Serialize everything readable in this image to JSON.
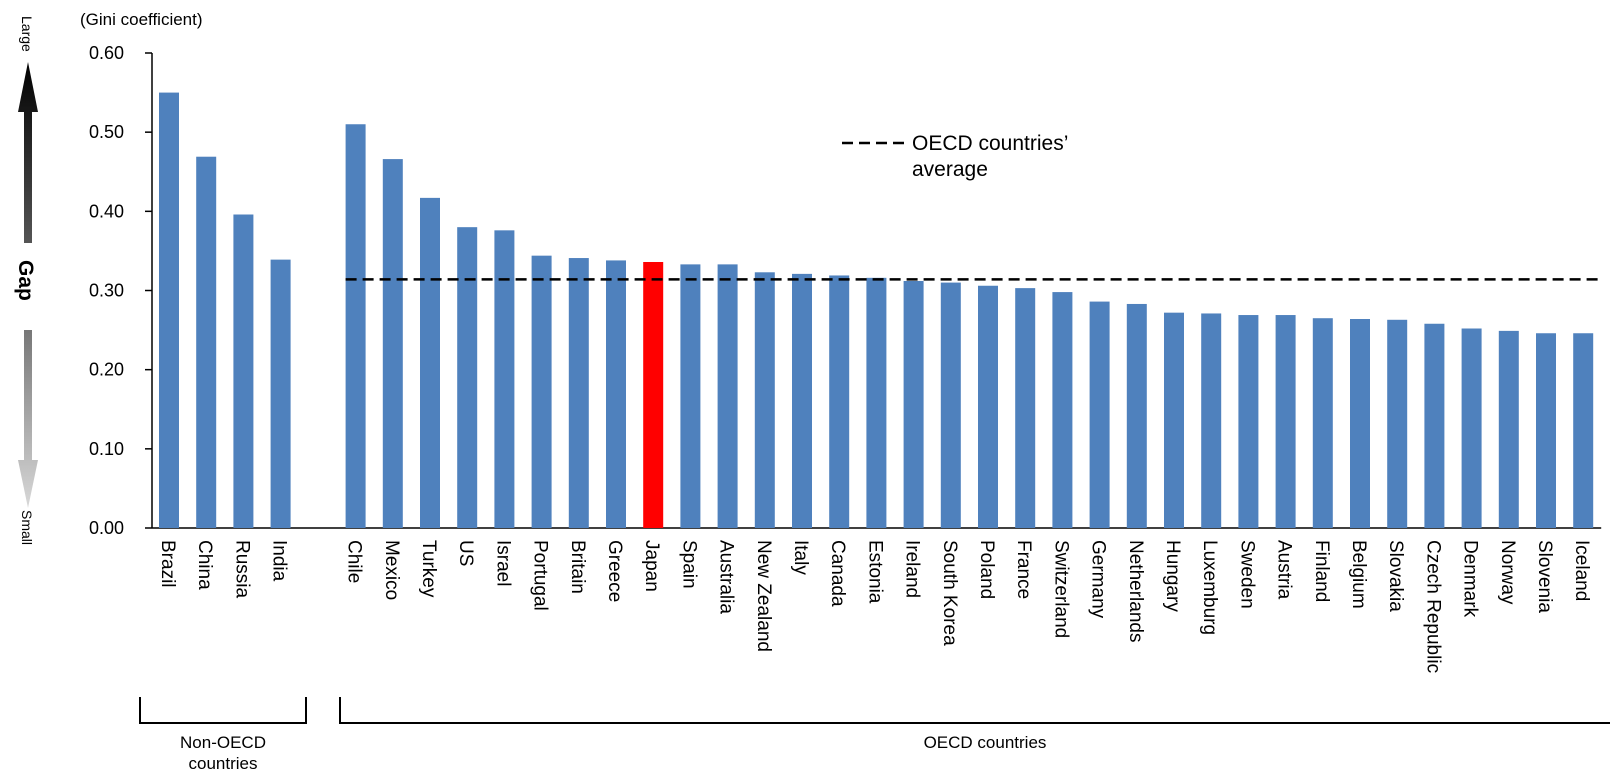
{
  "chart_data": {
    "type": "bar",
    "ylabel": "(Gini coefficient)",
    "ylim": [
      0,
      0.6
    ],
    "yticks": [
      "0.00",
      "0.10",
      "0.20",
      "0.30",
      "0.40",
      "0.50",
      "0.60"
    ],
    "grid": false,
    "categories": [
      "Brazil",
      "China",
      "Russia",
      "India",
      "Chile",
      "Mexico",
      "Turkey",
      "US",
      "Israel",
      "Portugal",
      "Britain",
      "Greece",
      "Japan",
      "Spain",
      "Australia",
      "New Zealand",
      "Italy",
      "Canada",
      "Estonia",
      "Ireland",
      "South Korea",
      "Poland",
      "France",
      "Switzerland",
      "Germany",
      "Netherlands",
      "Hungary",
      "Luxemburg",
      "Sweden",
      "Austria",
      "Finland",
      "Belgium",
      "Slovakia",
      "Czech Republic",
      "Denmark",
      "Norway",
      "Slovenia",
      "Iceland"
    ],
    "values": [
      0.55,
      0.469,
      0.396,
      0.339,
      0.51,
      0.466,
      0.417,
      0.38,
      0.376,
      0.344,
      0.341,
      0.338,
      0.336,
      0.333,
      0.333,
      0.323,
      0.321,
      0.319,
      0.316,
      0.312,
      0.31,
      0.306,
      0.303,
      0.298,
      0.286,
      0.283,
      0.272,
      0.271,
      0.269,
      0.269,
      0.265,
      0.264,
      0.263,
      0.258,
      0.252,
      0.249,
      0.246,
      0.246
    ],
    "highlight_category": "Japan",
    "oecd_average": 0.314,
    "groups": [
      {
        "label": "Non-OECD countries",
        "line1": "Non-OECD",
        "line2": "countries",
        "from": "Brazil",
        "to": "India"
      },
      {
        "label": "OECD countries",
        "line1": "OECD countries",
        "line2": "",
        "from": "Chile",
        "to": "Iceland"
      }
    ],
    "legend": {
      "line1": "OECD countries’",
      "line2": "average",
      "placement": "top-center"
    },
    "side_axis": {
      "top_label": "Large",
      "center_label": "Gap",
      "bottom_label": "Small"
    },
    "colors": {
      "bar": "#4f81bd",
      "highlight": "#ff0000",
      "average_line": "#000000"
    }
  }
}
